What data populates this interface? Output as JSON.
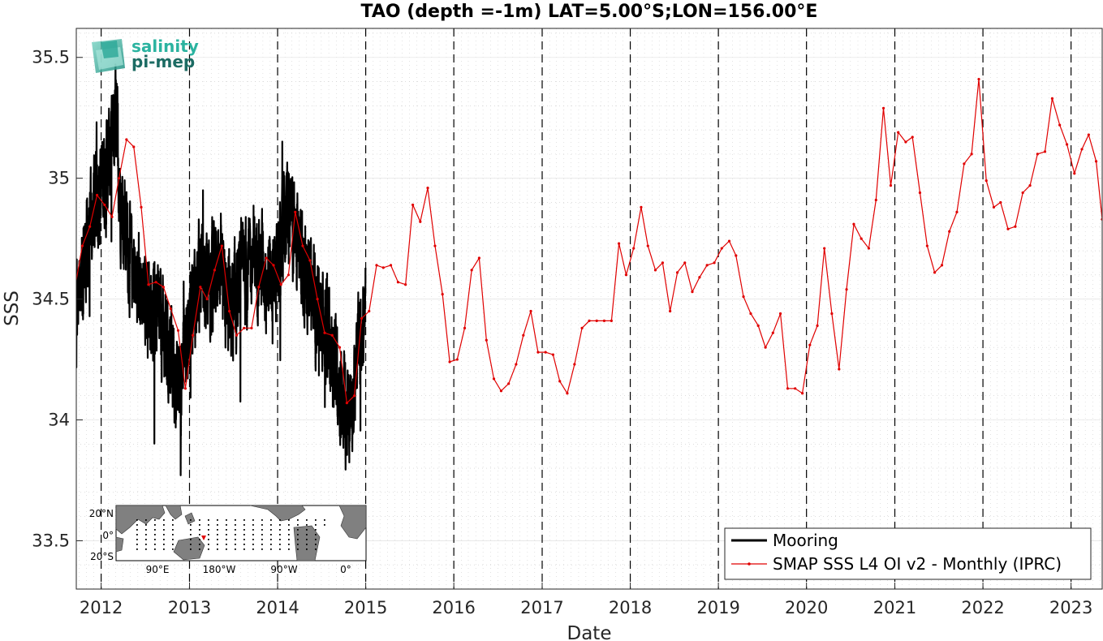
{
  "chart_data": {
    "type": "line",
    "title": "TAO (depth =-1m) LAT=5.00°S;LON=156.00°E",
    "xlabel": "Date",
    "ylabel": "SSS",
    "x_range": [
      "2011-09-20",
      "2023-05-10"
    ],
    "ylim": [
      33.3,
      35.62
    ],
    "yticks": [
      33.5,
      34,
      34.5,
      35,
      35.5
    ],
    "ytick_labels": [
      "33.5",
      "34",
      "34.5",
      "35",
      "35.5"
    ],
    "xticks": [
      "2012",
      "2013",
      "2014",
      "2015",
      "2016",
      "2017",
      "2018",
      "2019",
      "2020",
      "2021",
      "2022",
      "2023"
    ],
    "grid": true,
    "legend_position": "bottom-right",
    "series": [
      {
        "name": "Mooring",
        "color": "#000000",
        "x_start": "2011-09-20",
        "x_end": "2014-12-31",
        "trend": [
          [
            "2011-09-20",
            34.45
          ],
          [
            "2011-10-15",
            34.62
          ],
          [
            "2011-11-15",
            34.78
          ],
          [
            "2011-12-15",
            34.92
          ],
          [
            "2012-01-15",
            35.02
          ],
          [
            "2012-02-15",
            35.1
          ],
          [
            "2012-03-01",
            35.25
          ],
          [
            "2012-03-20",
            34.95
          ],
          [
            "2012-04-15",
            34.75
          ],
          [
            "2012-05-15",
            34.6
          ],
          [
            "2012-06-15",
            34.55
          ],
          [
            "2012-07-15",
            34.5
          ],
          [
            "2012-08-15",
            34.45
          ],
          [
            "2012-09-15",
            34.35
          ],
          [
            "2012-10-15",
            34.25
          ],
          [
            "2012-11-15",
            34.12
          ],
          [
            "2012-12-15",
            34.3
          ],
          [
            "2013-01-15",
            34.5
          ],
          [
            "2013-02-15",
            34.6
          ],
          [
            "2013-03-15",
            34.55
          ],
          [
            "2013-04-15",
            34.6
          ],
          [
            "2013-05-15",
            34.5
          ],
          [
            "2013-06-15",
            34.45
          ],
          [
            "2013-07-15",
            34.5
          ],
          [
            "2013-08-15",
            34.6
          ],
          [
            "2013-09-15",
            34.65
          ],
          [
            "2013-10-15",
            34.7
          ],
          [
            "2013-11-15",
            34.6
          ],
          [
            "2013-12-15",
            34.6
          ],
          [
            "2014-01-15",
            34.7
          ],
          [
            "2014-02-15",
            34.88
          ],
          [
            "2014-03-15",
            34.75
          ],
          [
            "2014-04-15",
            34.7
          ],
          [
            "2014-05-15",
            34.55
          ],
          [
            "2014-06-15",
            34.45
          ],
          [
            "2014-07-15",
            34.4
          ],
          [
            "2014-08-15",
            34.3
          ],
          [
            "2014-09-15",
            34.15
          ],
          [
            "2014-10-15",
            34.0
          ],
          [
            "2014-11-15",
            34.15
          ],
          [
            "2014-12-31",
            34.45
          ]
        ]
      },
      {
        "name": "SMAP SSS L4 OI v2 - Monthly (IPRC)",
        "color": "#e00000",
        "points": [
          [
            "2011-09-15",
            34.55
          ],
          [
            "2011-10-15",
            34.72
          ],
          [
            "2011-11-15",
            34.8
          ],
          [
            "2011-12-15",
            34.93
          ],
          [
            "2012-01-15",
            34.89
          ],
          [
            "2012-02-15",
            34.84
          ],
          [
            "2012-03-15",
            35.0
          ],
          [
            "2012-04-15",
            35.16
          ],
          [
            "2012-05-15",
            35.13
          ],
          [
            "2012-06-15",
            34.88
          ],
          [
            "2012-07-15",
            34.56
          ],
          [
            "2012-08-15",
            34.57
          ],
          [
            "2012-09-15",
            34.55
          ],
          [
            "2012-10-15",
            34.46
          ],
          [
            "2012-11-15",
            34.37
          ],
          [
            "2012-12-15",
            34.13
          ],
          [
            "2013-01-15",
            34.35
          ],
          [
            "2013-02-15",
            34.55
          ],
          [
            "2013-03-15",
            34.5
          ],
          [
            "2013-04-15",
            34.62
          ],
          [
            "2013-05-15",
            34.72
          ],
          [
            "2013-06-15",
            34.45
          ],
          [
            "2013-07-15",
            34.35
          ],
          [
            "2013-08-15",
            34.38
          ],
          [
            "2013-09-15",
            34.38
          ],
          [
            "2013-10-15",
            34.55
          ],
          [
            "2013-11-15",
            34.67
          ],
          [
            "2013-12-15",
            34.64
          ],
          [
            "2014-01-15",
            34.56
          ],
          [
            "2014-02-15",
            34.6
          ],
          [
            "2014-03-15",
            34.86
          ],
          [
            "2014-04-15",
            34.72
          ],
          [
            "2014-05-15",
            34.66
          ],
          [
            "2014-06-15",
            34.5
          ],
          [
            "2014-07-15",
            34.36
          ],
          [
            "2014-08-15",
            34.35
          ],
          [
            "2014-09-15",
            34.3
          ],
          [
            "2014-10-15",
            34.07
          ],
          [
            "2014-11-15",
            34.1
          ],
          [
            "2014-12-15",
            34.42
          ],
          [
            "2015-01-15",
            34.45
          ],
          [
            "2015-02-15",
            34.64
          ],
          [
            "2015-03-15",
            34.63
          ],
          [
            "2015-04-15",
            34.64
          ],
          [
            "2015-05-15",
            34.57
          ],
          [
            "2015-06-15",
            34.56
          ],
          [
            "2015-07-15",
            34.89
          ],
          [
            "2015-08-15",
            34.82
          ],
          [
            "2015-09-15",
            34.96
          ],
          [
            "2015-10-15",
            34.72
          ],
          [
            "2015-11-15",
            34.52
          ],
          [
            "2015-12-15",
            34.24
          ],
          [
            "2016-01-15",
            34.25
          ],
          [
            "2016-02-15",
            34.38
          ],
          [
            "2016-03-15",
            34.62
          ],
          [
            "2016-04-15",
            34.67
          ],
          [
            "2016-05-15",
            34.33
          ],
          [
            "2016-06-15",
            34.17
          ],
          [
            "2016-07-15",
            34.12
          ],
          [
            "2016-08-15",
            34.15
          ],
          [
            "2016-09-15",
            34.23
          ],
          [
            "2016-10-15",
            34.35
          ],
          [
            "2016-11-15",
            34.45
          ],
          [
            "2016-12-15",
            34.28
          ],
          [
            "2017-01-15",
            34.28
          ],
          [
            "2017-02-15",
            34.27
          ],
          [
            "2017-03-15",
            34.16
          ],
          [
            "2017-04-15",
            34.11
          ],
          [
            "2017-05-15",
            34.23
          ],
          [
            "2017-06-15",
            34.38
          ],
          [
            "2017-07-15",
            34.41
          ],
          [
            "2017-08-15",
            34.41
          ],
          [
            "2017-09-15",
            34.41
          ],
          [
            "2017-10-15",
            34.41
          ],
          [
            "2017-11-15",
            34.73
          ],
          [
            "2017-12-15",
            34.6
          ],
          [
            "2018-01-15",
            34.71
          ],
          [
            "2018-02-15",
            34.88
          ],
          [
            "2018-03-15",
            34.72
          ],
          [
            "2018-04-15",
            34.62
          ],
          [
            "2018-05-15",
            34.65
          ],
          [
            "2018-06-15",
            34.45
          ],
          [
            "2018-07-15",
            34.61
          ],
          [
            "2018-08-15",
            34.65
          ],
          [
            "2018-09-15",
            34.53
          ],
          [
            "2018-10-15",
            34.59
          ],
          [
            "2018-11-15",
            34.64
          ],
          [
            "2018-12-15",
            34.65
          ],
          [
            "2019-01-15",
            34.71
          ],
          [
            "2019-02-15",
            34.74
          ],
          [
            "2019-03-15",
            34.68
          ],
          [
            "2019-04-15",
            34.51
          ],
          [
            "2019-05-15",
            34.44
          ],
          [
            "2019-06-15",
            34.39
          ],
          [
            "2019-07-15",
            34.3
          ],
          [
            "2019-08-15",
            34.36
          ],
          [
            "2019-09-15",
            34.44
          ],
          [
            "2019-10-15",
            34.13
          ],
          [
            "2019-11-15",
            34.13
          ],
          [
            "2019-12-15",
            34.11
          ],
          [
            "2020-01-15",
            34.31
          ],
          [
            "2020-02-15",
            34.39
          ],
          [
            "2020-03-15",
            34.71
          ],
          [
            "2020-04-15",
            34.44
          ],
          [
            "2020-05-15",
            34.21
          ],
          [
            "2020-06-15",
            34.54
          ],
          [
            "2020-07-15",
            34.81
          ],
          [
            "2020-08-15",
            34.75
          ],
          [
            "2020-09-15",
            34.71
          ],
          [
            "2020-10-15",
            34.91
          ],
          [
            "2020-11-15",
            35.29
          ],
          [
            "2020-12-15",
            34.97
          ],
          [
            "2021-01-15",
            35.19
          ],
          [
            "2021-02-15",
            35.15
          ],
          [
            "2021-03-15",
            35.17
          ],
          [
            "2021-04-15",
            34.94
          ],
          [
            "2021-05-15",
            34.72
          ],
          [
            "2021-06-15",
            34.61
          ],
          [
            "2021-07-15",
            34.64
          ],
          [
            "2021-08-15",
            34.78
          ],
          [
            "2021-09-15",
            34.86
          ],
          [
            "2021-10-15",
            35.06
          ],
          [
            "2021-11-15",
            35.1
          ],
          [
            "2021-12-15",
            35.41
          ],
          [
            "2022-01-15",
            34.99
          ],
          [
            "2022-02-15",
            34.88
          ],
          [
            "2022-03-15",
            34.9
          ],
          [
            "2022-04-15",
            34.79
          ],
          [
            "2022-05-15",
            34.8
          ],
          [
            "2022-06-15",
            34.94
          ],
          [
            "2022-07-15",
            34.97
          ],
          [
            "2022-08-15",
            35.1
          ],
          [
            "2022-09-15",
            35.11
          ],
          [
            "2022-10-15",
            35.33
          ],
          [
            "2022-11-15",
            35.22
          ],
          [
            "2022-12-15",
            35.14
          ],
          [
            "2023-01-15",
            35.02
          ],
          [
            "2023-02-15",
            35.12
          ],
          [
            "2023-03-15",
            35.18
          ],
          [
            "2023-04-15",
            35.07
          ],
          [
            "2023-05-10",
            34.83
          ]
        ]
      }
    ]
  },
  "logo": {
    "line1": "salinity",
    "line2": "pi-mep"
  },
  "inset_map": {
    "lat_labels": [
      "20°N",
      "0°",
      "20°S"
    ],
    "lon_labels": [
      "90°E",
      "180°W",
      "90°W",
      "0°"
    ],
    "marker_color": "#e00000"
  }
}
